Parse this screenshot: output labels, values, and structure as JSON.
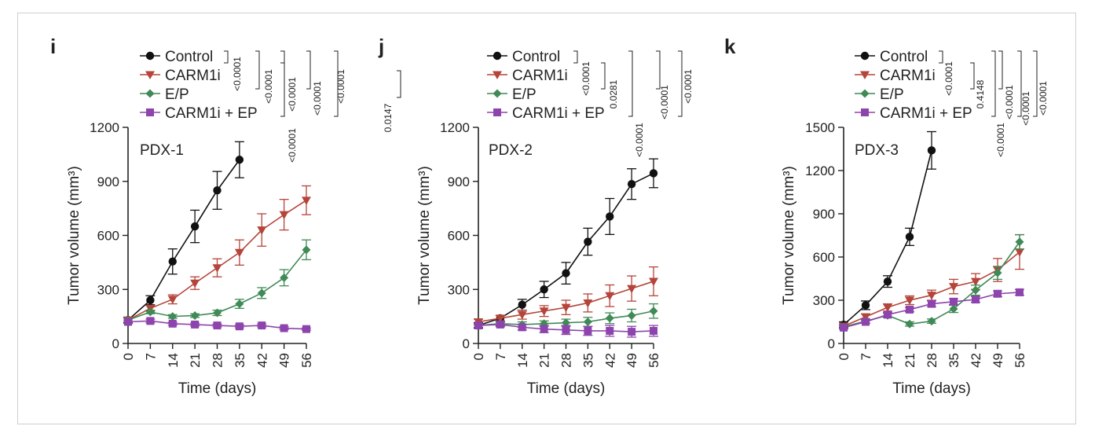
{
  "colors": {
    "control": "#111111",
    "carm1i": "#b5443a",
    "ep": "#3f8a55",
    "combo": "#8e44ad",
    "frame": "#cfcfcf"
  },
  "legend": [
    "Control",
    "CARM1i",
    "E/P",
    "CARM1i + EP"
  ],
  "chart_data": [
    {
      "type": "line",
      "panel": "i",
      "label": "PDX-1",
      "xlabel": "Time (days)",
      "ylabel": "Tumor volume (mm³)",
      "x_ticks": [
        "0",
        "7",
        "14",
        "21",
        "28",
        "35",
        "42",
        "49",
        "56"
      ],
      "y_ticks": [
        "0",
        "300",
        "600",
        "900",
        "1200"
      ],
      "xlim": [
        0,
        56
      ],
      "ylim": [
        0,
        1200
      ],
      "series": [
        {
          "name": "Control",
          "marker": "circle",
          "x": [
            0,
            7,
            14,
            21,
            28,
            35
          ],
          "y": [
            130,
            240,
            455,
            650,
            850,
            1020
          ],
          "err": [
            15,
            25,
            70,
            90,
            105,
            100
          ]
        },
        {
          "name": "CARM1i",
          "marker": "triangle-down",
          "x": [
            0,
            7,
            14,
            21,
            28,
            35,
            42,
            49,
            56
          ],
          "y": [
            130,
            195,
            245,
            335,
            420,
            505,
            630,
            715,
            795
          ],
          "err": [
            10,
            15,
            25,
            35,
            50,
            70,
            90,
            85,
            80
          ]
        },
        {
          "name": "E/P",
          "marker": "diamond",
          "x": [
            0,
            7,
            14,
            21,
            28,
            35,
            42,
            49,
            56
          ],
          "y": [
            130,
            175,
            150,
            155,
            170,
            220,
            280,
            365,
            520
          ],
          "err": [
            10,
            10,
            10,
            10,
            15,
            25,
            30,
            45,
            55
          ]
        },
        {
          "name": "CARM1i + EP",
          "marker": "square",
          "x": [
            0,
            7,
            14,
            21,
            28,
            35,
            42,
            49,
            56
          ],
          "y": [
            120,
            125,
            110,
            105,
            100,
            95,
            100,
            85,
            80
          ],
          "err": [
            10,
            10,
            8,
            8,
            8,
            8,
            8,
            8,
            6
          ]
        }
      ],
      "pvalues": [
        "<0.0001",
        "<0.0001",
        "<0.0001",
        "<0.0001",
        "<0.0001",
        "<0.0001"
      ]
    },
    {
      "type": "line",
      "panel": "j",
      "label": "PDX-2",
      "xlabel": "Time (days)",
      "ylabel": "Tumor volume (mm³)",
      "x_ticks": [
        "0",
        "7",
        "14",
        "21",
        "28",
        "35",
        "42",
        "49",
        "56"
      ],
      "y_ticks": [
        "0",
        "300",
        "600",
        "900",
        "1200"
      ],
      "xlim": [
        0,
        56
      ],
      "ylim": [
        0,
        1200
      ],
      "series": [
        {
          "name": "Control",
          "marker": "circle",
          "x": [
            0,
            7,
            14,
            21,
            28,
            35,
            42,
            49,
            56
          ],
          "y": [
            100,
            140,
            215,
            300,
            390,
            565,
            705,
            885,
            945
          ],
          "err": [
            15,
            15,
            30,
            45,
            60,
            75,
            100,
            85,
            80
          ]
        },
        {
          "name": "CARM1i",
          "marker": "triangle-down",
          "x": [
            0,
            7,
            14,
            21,
            28,
            35,
            42,
            49,
            56
          ],
          "y": [
            120,
            140,
            160,
            180,
            200,
            225,
            265,
            305,
            345
          ],
          "err": [
            15,
            15,
            25,
            30,
            40,
            50,
            60,
            70,
            80
          ]
        },
        {
          "name": "E/P",
          "marker": "diamond",
          "x": [
            0,
            7,
            14,
            21,
            28,
            35,
            42,
            49,
            56
          ],
          "y": [
            100,
            110,
            105,
            110,
            115,
            120,
            140,
            155,
            180
          ],
          "err": [
            10,
            12,
            15,
            15,
            20,
            25,
            30,
            35,
            40
          ]
        },
        {
          "name": "CARM1i + EP",
          "marker": "square",
          "x": [
            0,
            7,
            14,
            21,
            28,
            35,
            42,
            49,
            56
          ],
          "y": [
            100,
            105,
            90,
            80,
            75,
            70,
            70,
            65,
            70
          ],
          "err": [
            10,
            12,
            15,
            20,
            25,
            25,
            30,
            30,
            30
          ]
        }
      ],
      "pvalues": [
        "<0.0001",
        "0.0281",
        "0.0147",
        "<0.0001",
        "<0.0001",
        "<0.0001"
      ]
    },
    {
      "type": "line",
      "panel": "k",
      "label": "PDX-3",
      "xlabel": "Time (days)",
      "ylabel": "Tumor volume (mm³)",
      "x_ticks": [
        "0",
        "7",
        "14",
        "21",
        "28",
        "35",
        "42",
        "49",
        "56"
      ],
      "y_ticks": [
        "0",
        "300",
        "600",
        "900",
        "1200",
        "1500"
      ],
      "xlim": [
        0,
        56
      ],
      "ylim": [
        0,
        1500
      ],
      "series": [
        {
          "name": "Control",
          "marker": "circle",
          "x": [
            0,
            7,
            14,
            21,
            28
          ],
          "y": [
            130,
            265,
            430,
            740,
            1340
          ],
          "err": [
            20,
            30,
            40,
            60,
            130
          ]
        },
        {
          "name": "CARM1i",
          "marker": "triangle-down",
          "x": [
            0,
            7,
            14,
            21,
            28,
            35,
            42,
            49,
            56
          ],
          "y": [
            120,
            185,
            250,
            300,
            335,
            395,
            430,
            510,
            635
          ],
          "err": [
            15,
            20,
            25,
            30,
            35,
            50,
            55,
            80,
            120
          ]
        },
        {
          "name": "E/P",
          "marker": "diamond",
          "x": [
            0,
            7,
            14,
            21,
            28,
            35,
            42,
            49,
            56
          ],
          "y": [
            115,
            155,
            195,
            135,
            155,
            240,
            370,
            490,
            705
          ],
          "err": [
            10,
            15,
            15,
            15,
            15,
            25,
            35,
            45,
            50
          ]
        },
        {
          "name": "CARM1i + EP",
          "marker": "square",
          "x": [
            0,
            7,
            14,
            21,
            28,
            35,
            42,
            49,
            56
          ],
          "y": [
            110,
            150,
            200,
            235,
            275,
            290,
            305,
            345,
            355
          ],
          "err": [
            10,
            10,
            15,
            15,
            20,
            20,
            20,
            20,
            20
          ]
        }
      ],
      "pvalues": [
        "<0.0001",
        "0.4148",
        "<0.0001",
        "<0.0001",
        "<0.0001",
        "<0.0001"
      ]
    }
  ]
}
